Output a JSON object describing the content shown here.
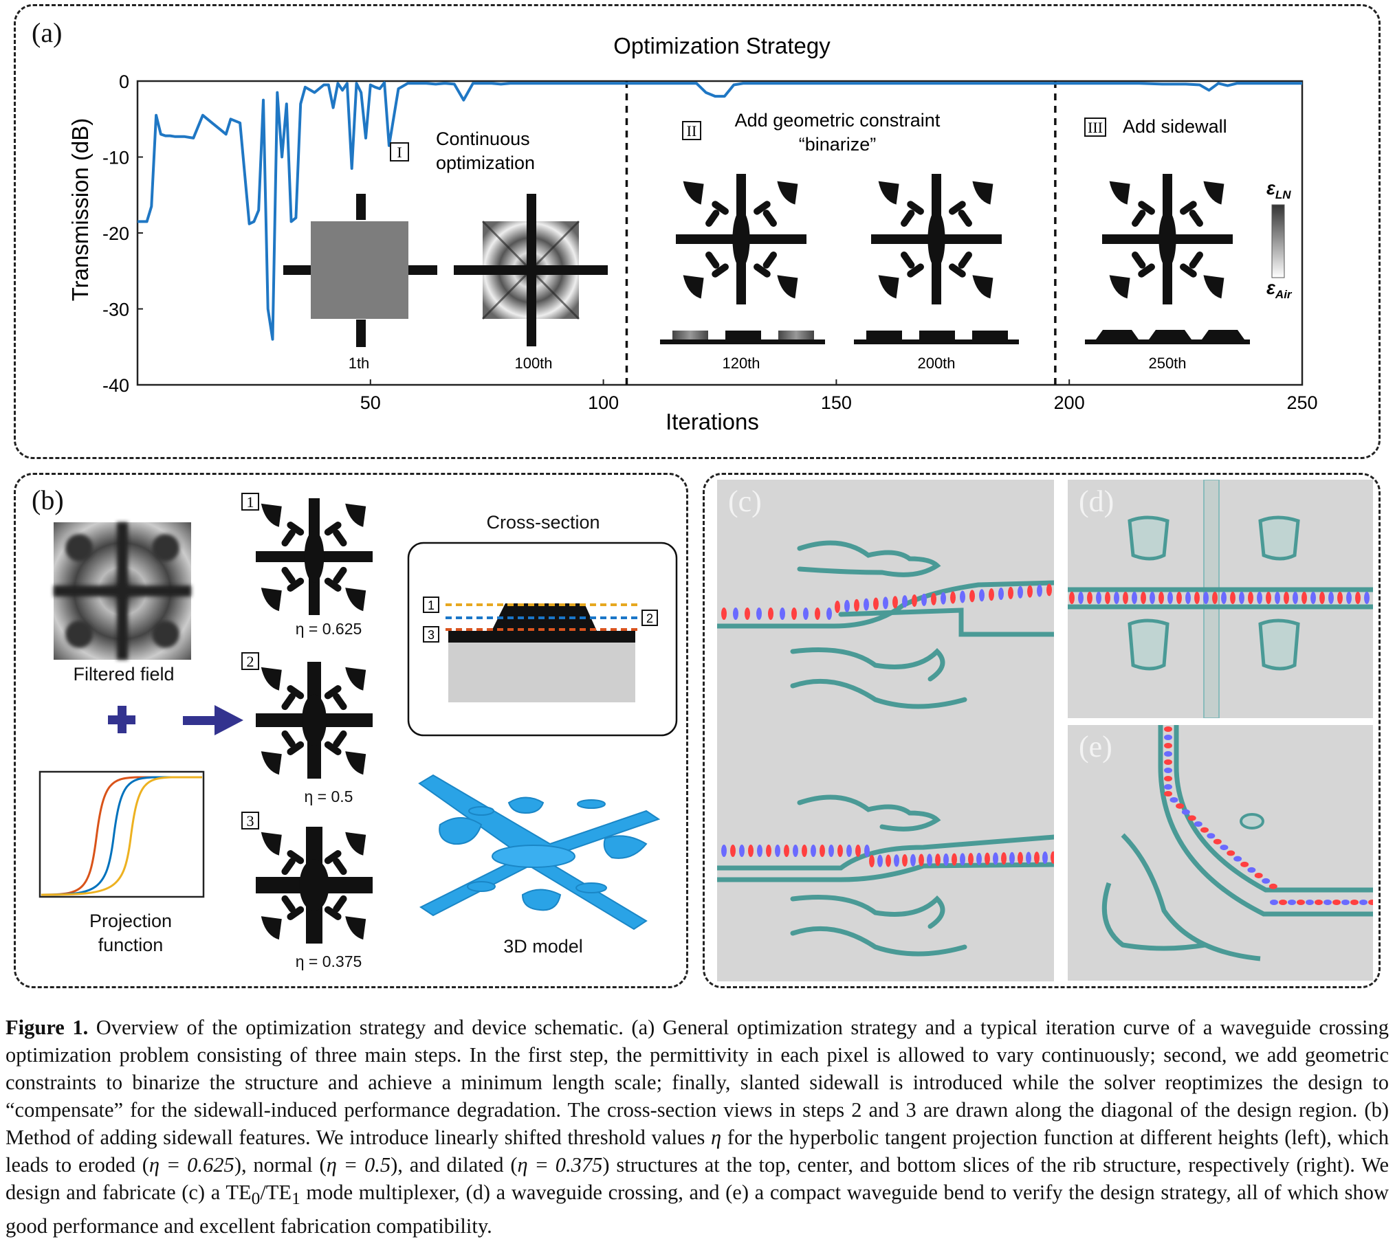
{
  "panel_a": {
    "label": "(a)",
    "title": "Optimization Strategy",
    "steps": [
      {
        "roman": "I",
        "text_line1": "Continuous",
        "text_line2": "optimization"
      },
      {
        "roman": "II",
        "text_line1": "Add geometric constraint",
        "text_line2": "“binarize”"
      },
      {
        "roman": "III",
        "text_line1": "Add sidewall",
        "text_line2": ""
      }
    ],
    "snapshot_labels": [
      "1th",
      "100th",
      "120th",
      "200th",
      "250th"
    ],
    "colorbar": {
      "top": "ε_LN",
      "bottom": "ε_Air",
      "top_main": "ε",
      "top_sub": "LN",
      "bottom_main": "ε",
      "bottom_sub": "Air"
    },
    "line_color": "#1f77c4"
  },
  "chart_data": {
    "type": "line",
    "title": "Optimization Strategy",
    "xlabel": "Iterations",
    "ylabel": "Transmission (dB)",
    "xlim": [
      0,
      250
    ],
    "ylim": [
      -40,
      0
    ],
    "xticks": [
      50,
      100,
      150,
      200,
      250
    ],
    "yticks": [
      0,
      -10,
      -20,
      -30,
      -40
    ],
    "dividers_at": [
      105,
      197
    ],
    "x": [
      0,
      2,
      3,
      4,
      5,
      6,
      7,
      8,
      10,
      12,
      14,
      16,
      18,
      19,
      20,
      22,
      24,
      25,
      26,
      27,
      28,
      29,
      30,
      31,
      32,
      33,
      34,
      35,
      36,
      38,
      40,
      41,
      42,
      43,
      44,
      45,
      46,
      47,
      48,
      49,
      50,
      51,
      52,
      53,
      54,
      56,
      58,
      60,
      62,
      64,
      66,
      68,
      70,
      72,
      74,
      76,
      78,
      80,
      85,
      90,
      95,
      100,
      105,
      110,
      112,
      115,
      118,
      120,
      122,
      124,
      126,
      128,
      130,
      140,
      150,
      160,
      170,
      180,
      190,
      195,
      200,
      205,
      210,
      215,
      220,
      225,
      228,
      230,
      232,
      234,
      236,
      240,
      245,
      250
    ],
    "y": [
      -18.5,
      -18.5,
      -16.5,
      -4.5,
      -7,
      -7.2,
      -7.2,
      -7.3,
      -7.3,
      -7.5,
      -4.5,
      -5.5,
      -6.5,
      -7,
      -5,
      -5.5,
      -18.8,
      -18.5,
      -17,
      -2.5,
      -30,
      -34,
      -1.5,
      -10,
      -3,
      -18.5,
      -18,
      -3,
      -0.8,
      -1.5,
      -0.5,
      -0.5,
      -3.5,
      -0.3,
      -1.2,
      -0.3,
      -11.5,
      -0.3,
      -1.5,
      -7.5,
      -0.5,
      -0.8,
      -1,
      -0.2,
      -8.5,
      -1,
      -0.3,
      -0.3,
      -0.3,
      -0.4,
      -0.3,
      -0.4,
      -2.5,
      -0.3,
      -0.3,
      -0.3,
      -0.4,
      -0.3,
      -0.3,
      -0.3,
      -0.3,
      -0.3,
      -0.3,
      -0.3,
      -0.3,
      -0.3,
      -0.3,
      -0.3,
      -1.5,
      -2,
      -2,
      -0.5,
      -0.3,
      -0.3,
      -0.3,
      -0.3,
      -0.3,
      -0.3,
      -0.3,
      -0.3,
      -0.3,
      -0.3,
      -0.3,
      -0.3,
      -0.4,
      -0.4,
      -0.5,
      -1.2,
      -0.3,
      -0.6,
      -0.3,
      -0.3,
      -0.3,
      -0.3
    ]
  },
  "panel_b": {
    "label": "(b)",
    "filtered_field": "Filtered field",
    "projection_line1": "Projection",
    "projection_line2": "function",
    "etas": [
      {
        "index": "1",
        "text": "η = 0.625"
      },
      {
        "index": "2",
        "text": "η = 0.5"
      },
      {
        "index": "3",
        "text": "η = 0.375"
      }
    ],
    "cross_section": "Cross-section",
    "cs_indices": [
      "1",
      "2",
      "3"
    ],
    "model_label": "3D model",
    "curve_colors": [
      "#d95319",
      "#0072bd",
      "#edb120"
    ],
    "arrow_color": "#33338f"
  },
  "panel_c": {
    "label": "(c)"
  },
  "panel_d": {
    "label": "(d)"
  },
  "panel_e": {
    "label": "(e)"
  },
  "caption": {
    "figure": "Figure 1.",
    "p1": " Overview of the optimization strategy and device schematic. (a) General optimization strategy and a typical iteration curve of a waveguide crossing optimization problem consisting of three main steps. In the first step, the permittivity in each pixel is allowed to vary continuously; second, we add geometric constraints to binarize the structure and achieve a minimum length scale; finally, slanted sidewall is introduced while the solver reoptimizes the design to “compensate” for the sidewall-induced performance degradation. The cross-section views in steps 2 and 3 are drawn along the diagonal of the design region. (b) Method of adding sidewall features. We introduce linearly shifted threshold values ",
    "eta": "η",
    "p2": " for the hyperbolic tangent projection function at different heights (left), which leads to eroded (",
    "eta_a": "η = 0.625",
    "p3": "), normal (",
    "eta_b": "η = 0.5",
    "p4": "), and dilated (",
    "eta_c": "η = 0.375",
    "p5": ") structures at the top, center, and bottom slices of the rib structure, respectively (right). We design and fabricate (c) a TE",
    "sub0": "0",
    "p6": "/TE",
    "sub1": "1",
    "p7": " mode multiplexer, (d) a waveguide crossing, and (e) a compact waveguide bend to verify the design strategy, all of which show good performance and excellent fabrication compatibility."
  }
}
